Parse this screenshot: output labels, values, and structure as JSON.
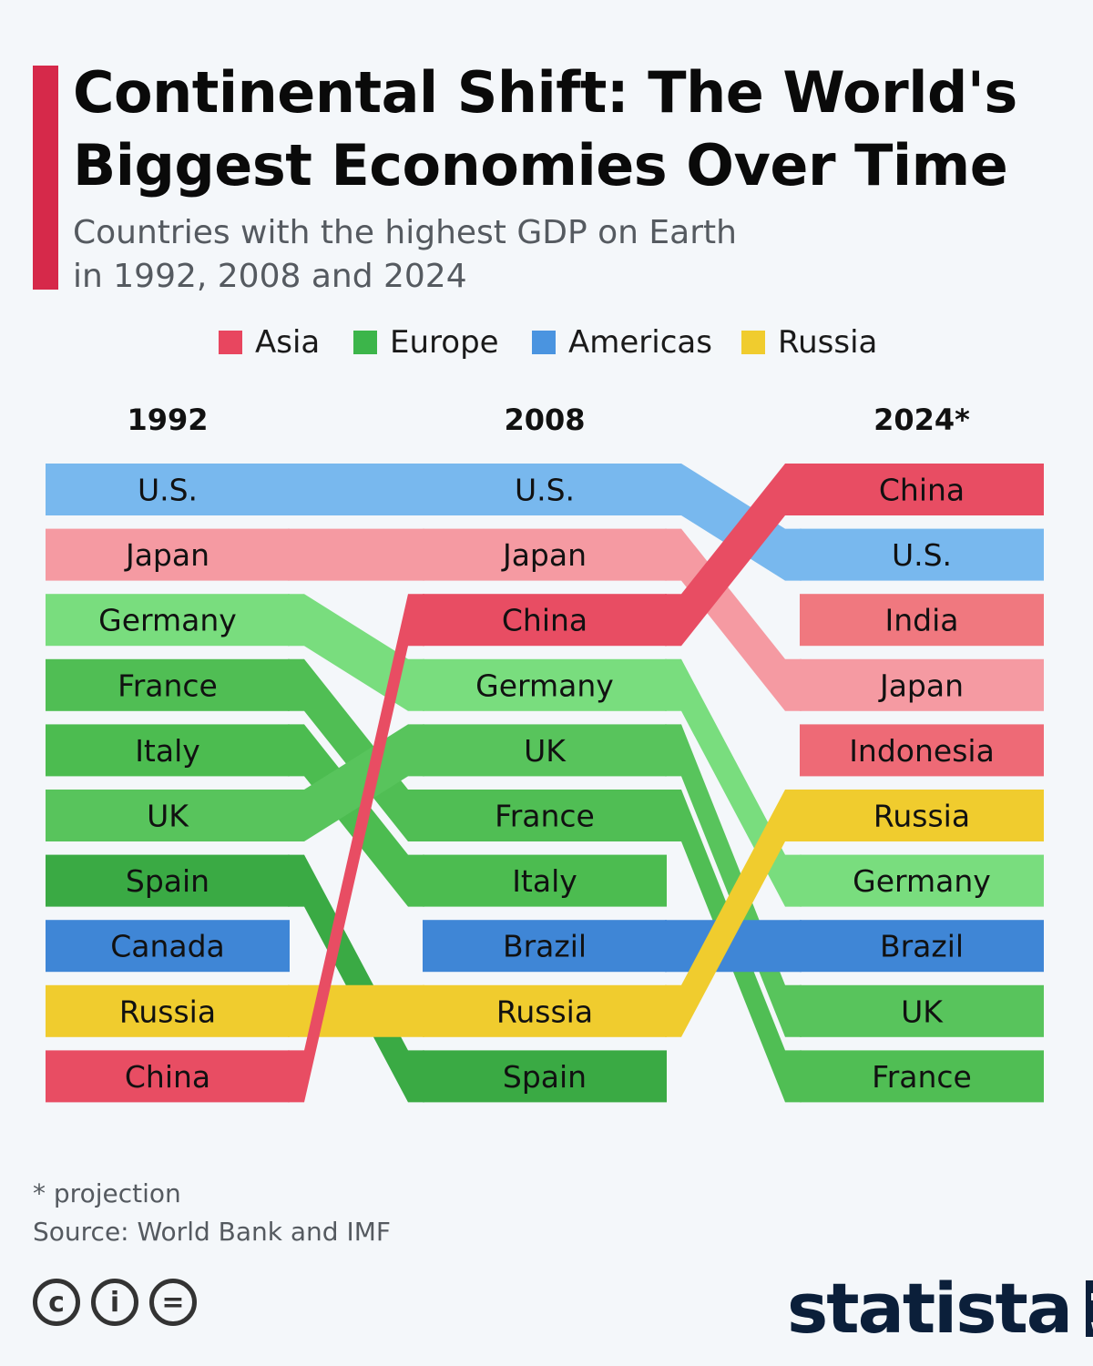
{
  "header": {
    "title_line1": "Continental Shift: The World's",
    "title_line2": "Biggest Economies Over Time",
    "subtitle_line1": "Countries with the highest GDP on Earth",
    "subtitle_line2": "in 1992, 2008 and 2024"
  },
  "legend": [
    {
      "label": "Asia",
      "color": "#e8465f"
    },
    {
      "label": "Europe",
      "color": "#3cb54a"
    },
    {
      "label": "Americas",
      "color": "#4a94e0"
    },
    {
      "label": "Russia",
      "color": "#f0cc2e"
    }
  ],
  "chart_data": {
    "type": "table",
    "columns": [
      "1992",
      "2008",
      "2024*"
    ],
    "rankings": {
      "1992": [
        "U.S.",
        "Japan",
        "Germany",
        "France",
        "Italy",
        "UK",
        "Spain",
        "Canada",
        "Russia",
        "China"
      ],
      "2008": [
        "U.S.",
        "Japan",
        "China",
        "Germany",
        "UK",
        "France",
        "Italy",
        "Brazil",
        "Russia",
        "Spain"
      ],
      "2024*": [
        "China",
        "U.S.",
        "India",
        "Japan",
        "Indonesia",
        "Russia",
        "Germany",
        "Brazil",
        "UK",
        "France"
      ]
    },
    "regions": {
      "U.S.": "Americas",
      "Canada": "Americas",
      "Brazil": "Americas",
      "Japan": "Asia",
      "China": "Asia",
      "India": "Asia",
      "Indonesia": "Asia",
      "Germany": "Europe",
      "France": "Europe",
      "Italy": "Europe",
      "UK": "Europe",
      "Spain": "Europe",
      "Russia": "Russia"
    },
    "colors": {
      "U.S.": "#78b8ee",
      "Canada": "#3f86d6",
      "Brazil": "#3f86d6",
      "Japan": "#f59aa2",
      "China": "#e84d63",
      "India": "#f0787f",
      "Indonesia": "#ee6a76",
      "Germany": "#79dd7e",
      "France": "#50be54",
      "Italy": "#4cbc50",
      "UK": "#58c45c",
      "Spain": "#3aaa44",
      "Russia": "#f0cc2e"
    }
  },
  "footer": {
    "note": "* projection",
    "source": "Source: World Bank and IMF"
  },
  "brand": {
    "logo_text": "statista"
  }
}
